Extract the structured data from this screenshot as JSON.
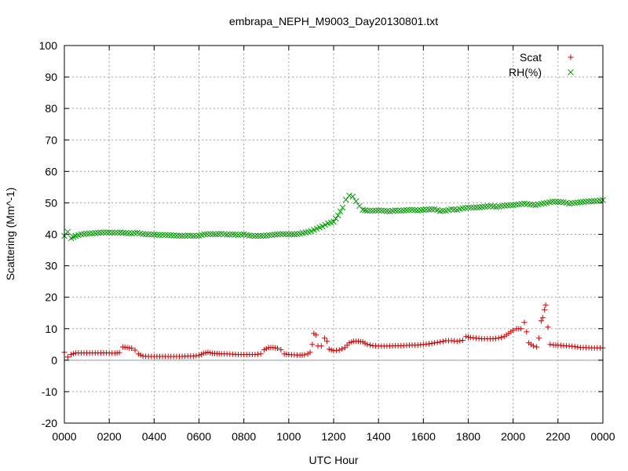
{
  "chart_data": {
    "type": "scatter",
    "title": "embrapa_NEPH_M9003_Day20130801.txt",
    "xlabel": "UTC Hour",
    "ylabel": "Scattering (Mm^-1)",
    "xlim": [
      0,
      24
    ],
    "ylim": [
      -20,
      100
    ],
    "grid": true,
    "legend": "top-right",
    "x_ticks": [
      {
        "value": 0,
        "label": "0000"
      },
      {
        "value": 2,
        "label": "0200"
      },
      {
        "value": 4,
        "label": "0400"
      },
      {
        "value": 6,
        "label": "0600"
      },
      {
        "value": 8,
        "label": "0800"
      },
      {
        "value": 10,
        "label": "1000"
      },
      {
        "value": 12,
        "label": "1200"
      },
      {
        "value": 14,
        "label": "1400"
      },
      {
        "value": 16,
        "label": "1600"
      },
      {
        "value": 18,
        "label": "1800"
      },
      {
        "value": 20,
        "label": "2000"
      },
      {
        "value": 22,
        "label": "2200"
      },
      {
        "value": 24,
        "label": "0000"
      }
    ],
    "y_ticks": [
      -20,
      -10,
      0,
      10,
      20,
      30,
      40,
      50,
      60,
      70,
      80,
      90,
      100
    ],
    "zero_line": true,
    "series": [
      {
        "name": "Scat",
        "marker": "plus",
        "color": "#cc0000",
        "points": [
          [
            0.0,
            2.5
          ],
          [
            0.15,
            1.0
          ],
          [
            0.3,
            1.8
          ],
          [
            0.5,
            2.3
          ],
          [
            0.75,
            2.3
          ],
          [
            1.0,
            2.3
          ],
          [
            1.25,
            2.3
          ],
          [
            1.5,
            2.3
          ],
          [
            1.75,
            2.3
          ],
          [
            2.0,
            2.3
          ],
          [
            2.25,
            2.2
          ],
          [
            2.45,
            2.4
          ],
          [
            2.6,
            4.2
          ],
          [
            2.8,
            4.0
          ],
          [
            3.0,
            3.8
          ],
          [
            3.15,
            3.2
          ],
          [
            3.3,
            2.0
          ],
          [
            3.5,
            1.3
          ],
          [
            3.75,
            1.2
          ],
          [
            4.0,
            1.2
          ],
          [
            4.25,
            1.2
          ],
          [
            4.5,
            1.2
          ],
          [
            4.75,
            1.2
          ],
          [
            5.0,
            1.2
          ],
          [
            5.25,
            1.2
          ],
          [
            5.5,
            1.3
          ],
          [
            5.75,
            1.3
          ],
          [
            6.0,
            1.5
          ],
          [
            6.2,
            2.2
          ],
          [
            6.4,
            2.5
          ],
          [
            6.6,
            2.2
          ],
          [
            6.8,
            2.1
          ],
          [
            7.0,
            2.0
          ],
          [
            7.25,
            2.0
          ],
          [
            7.5,
            1.9
          ],
          [
            7.75,
            1.8
          ],
          [
            8.0,
            1.8
          ],
          [
            8.25,
            1.8
          ],
          [
            8.5,
            1.8
          ],
          [
            8.75,
            2.0
          ],
          [
            8.9,
            3.3
          ],
          [
            9.1,
            4.0
          ],
          [
            9.3,
            4.0
          ],
          [
            9.5,
            3.8
          ],
          [
            9.65,
            3.3
          ],
          [
            9.8,
            2.0
          ],
          [
            10.0,
            1.8
          ],
          [
            10.25,
            1.7
          ],
          [
            10.5,
            1.6
          ],
          [
            10.7,
            1.7
          ],
          [
            10.85,
            2.0
          ],
          [
            10.95,
            2.5
          ],
          [
            11.05,
            5.0
          ],
          [
            11.12,
            8.5
          ],
          [
            11.22,
            8.0
          ],
          [
            11.3,
            4.5
          ],
          [
            11.45,
            4.5
          ],
          [
            11.6,
            7.0
          ],
          [
            11.7,
            6.0
          ],
          [
            11.8,
            3.5
          ],
          [
            12.0,
            3.0
          ],
          [
            12.25,
            3.2
          ],
          [
            12.5,
            4.0
          ],
          [
            12.7,
            5.5
          ],
          [
            12.9,
            6.0
          ],
          [
            13.1,
            6.0
          ],
          [
            13.3,
            5.8
          ],
          [
            13.5,
            5.0
          ],
          [
            13.75,
            4.6
          ],
          [
            14.0,
            4.5
          ],
          [
            14.25,
            4.5
          ],
          [
            14.5,
            4.5
          ],
          [
            14.75,
            4.6
          ],
          [
            15.0,
            4.6
          ],
          [
            15.25,
            4.7
          ],
          [
            15.5,
            4.8
          ],
          [
            15.75,
            4.8
          ],
          [
            16.0,
            5.0
          ],
          [
            16.25,
            5.2
          ],
          [
            16.5,
            5.5
          ],
          [
            16.75,
            5.8
          ],
          [
            17.0,
            6.2
          ],
          [
            17.25,
            6.2
          ],
          [
            17.5,
            6.0
          ],
          [
            17.75,
            6.3
          ],
          [
            17.9,
            7.5
          ],
          [
            18.1,
            7.2
          ],
          [
            18.35,
            7.0
          ],
          [
            18.6,
            6.8
          ],
          [
            18.85,
            6.8
          ],
          [
            19.1,
            6.8
          ],
          [
            19.35,
            7.0
          ],
          [
            19.6,
            7.5
          ],
          [
            19.8,
            8.5
          ],
          [
            20.0,
            9.5
          ],
          [
            20.15,
            10.0
          ],
          [
            20.35,
            10.0
          ],
          [
            20.5,
            12.0
          ],
          [
            20.6,
            9.0
          ],
          [
            20.7,
            5.5
          ],
          [
            20.8,
            5.0
          ],
          [
            20.9,
            4.5
          ],
          [
            21.05,
            4.2
          ],
          [
            21.15,
            7.0
          ],
          [
            21.25,
            12.5
          ],
          [
            21.32,
            13.5
          ],
          [
            21.4,
            16.0
          ],
          [
            21.45,
            17.5
          ],
          [
            21.55,
            10.5
          ],
          [
            21.65,
            5.0
          ],
          [
            21.8,
            4.8
          ],
          [
            22.0,
            4.8
          ],
          [
            22.25,
            4.6
          ],
          [
            22.5,
            4.5
          ],
          [
            22.75,
            4.3
          ],
          [
            23.0,
            4.0
          ],
          [
            23.25,
            4.0
          ],
          [
            23.5,
            3.9
          ],
          [
            23.75,
            3.9
          ],
          [
            24.0,
            3.9
          ]
        ]
      },
      {
        "name": "RH(%)",
        "marker": "cross",
        "color": "#009900",
        "points": [
          [
            0.0,
            39.5
          ],
          [
            0.15,
            40.8
          ],
          [
            0.3,
            38.8
          ],
          [
            0.5,
            39.5
          ],
          [
            0.75,
            40.0
          ],
          [
            1.0,
            40.2
          ],
          [
            1.25,
            40.3
          ],
          [
            1.5,
            40.5
          ],
          [
            1.75,
            40.6
          ],
          [
            2.0,
            40.6
          ],
          [
            2.25,
            40.5
          ],
          [
            2.5,
            40.6
          ],
          [
            2.75,
            40.4
          ],
          [
            3.0,
            40.3
          ],
          [
            3.25,
            40.5
          ],
          [
            3.5,
            40.1
          ],
          [
            3.75,
            40.0
          ],
          [
            4.0,
            39.9
          ],
          [
            4.25,
            39.8
          ],
          [
            4.5,
            39.8
          ],
          [
            4.75,
            39.7
          ],
          [
            5.0,
            39.6
          ],
          [
            5.25,
            39.5
          ],
          [
            5.5,
            39.6
          ],
          [
            5.75,
            39.5
          ],
          [
            6.0,
            39.6
          ],
          [
            6.25,
            40.0
          ],
          [
            6.5,
            40.1
          ],
          [
            6.75,
            40.0
          ],
          [
            7.0,
            40.2
          ],
          [
            7.25,
            39.9
          ],
          [
            7.5,
            40.0
          ],
          [
            7.75,
            39.8
          ],
          [
            8.0,
            40.0
          ],
          [
            8.25,
            39.6
          ],
          [
            8.5,
            39.5
          ],
          [
            8.75,
            39.5
          ],
          [
            9.0,
            39.6
          ],
          [
            9.25,
            39.8
          ],
          [
            9.5,
            40.0
          ],
          [
            9.75,
            40.1
          ],
          [
            10.0,
            40.0
          ],
          [
            10.25,
            40.0
          ],
          [
            10.5,
            40.2
          ],
          [
            10.75,
            40.6
          ],
          [
            11.0,
            41.0
          ],
          [
            11.25,
            41.8
          ],
          [
            11.5,
            42.5
          ],
          [
            11.75,
            43.5
          ],
          [
            12.0,
            44.0
          ],
          [
            12.2,
            46.0
          ],
          [
            12.4,
            48.5
          ],
          [
            12.55,
            51.0
          ],
          [
            12.7,
            52.3
          ],
          [
            12.85,
            52.0
          ],
          [
            13.0,
            50.5
          ],
          [
            13.15,
            49.0
          ],
          [
            13.3,
            47.8
          ],
          [
            13.5,
            47.5
          ],
          [
            13.75,
            47.5
          ],
          [
            14.0,
            47.6
          ],
          [
            14.25,
            47.5
          ],
          [
            14.5,
            47.3
          ],
          [
            14.75,
            47.6
          ],
          [
            15.0,
            47.5
          ],
          [
            15.25,
            47.7
          ],
          [
            15.5,
            47.8
          ],
          [
            15.75,
            47.6
          ],
          [
            16.0,
            47.8
          ],
          [
            16.25,
            47.9
          ],
          [
            16.5,
            48.0
          ],
          [
            16.75,
            47.4
          ],
          [
            17.0,
            47.5
          ],
          [
            17.25,
            48.0
          ],
          [
            17.5,
            47.8
          ],
          [
            17.75,
            48.3
          ],
          [
            18.0,
            48.5
          ],
          [
            18.25,
            48.5
          ],
          [
            18.5,
            48.6
          ],
          [
            18.75,
            48.8
          ],
          [
            19.0,
            49.0
          ],
          [
            19.25,
            48.7
          ],
          [
            19.5,
            49.0
          ],
          [
            19.75,
            49.2
          ],
          [
            20.0,
            49.3
          ],
          [
            20.25,
            49.5
          ],
          [
            20.5,
            49.8
          ],
          [
            20.75,
            49.5
          ],
          [
            21.0,
            49.3
          ],
          [
            21.25,
            49.7
          ],
          [
            21.5,
            50.0
          ],
          [
            21.75,
            50.4
          ],
          [
            22.0,
            50.3
          ],
          [
            22.25,
            50.2
          ],
          [
            22.5,
            49.8
          ],
          [
            22.75,
            50.0
          ],
          [
            23.0,
            50.2
          ],
          [
            23.25,
            50.4
          ],
          [
            23.5,
            50.5
          ],
          [
            23.75,
            50.6
          ],
          [
            24.0,
            50.9
          ]
        ]
      }
    ]
  }
}
